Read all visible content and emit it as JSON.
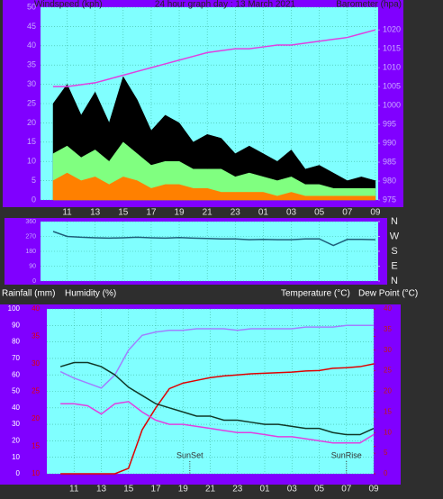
{
  "chart_data": [
    {
      "type": "line",
      "title": "24 hour graph day : 13 March 2021",
      "ylabel": "Windspeed (kph)",
      "y2label": "Barometer (hpa)",
      "x": [
        10,
        11,
        12,
        13,
        14,
        15,
        16,
        17,
        18,
        19,
        20,
        21,
        22,
        23,
        24,
        25,
        26,
        27,
        28,
        29,
        30,
        31,
        32,
        33
      ],
      "xlim": [
        9.1,
        33.2
      ],
      "xticks": [
        11,
        13,
        15,
        17,
        19,
        21,
        23,
        {
          "value": 25,
          "label": "01"
        },
        {
          "value": 27,
          "label": "03"
        },
        {
          "value": 29,
          "label": "05"
        },
        {
          "value": 31,
          "label": "07"
        },
        {
          "value": 33,
          "label": "09"
        }
      ],
      "ylim": [
        0,
        50
      ],
      "yticks": [
        0,
        5,
        10,
        15,
        20,
        25,
        30,
        35,
        40,
        45,
        50
      ],
      "y2lim": [
        975,
        1026
      ],
      "y2ticks": [
        975,
        980,
        985,
        990,
        995,
        1000,
        1005,
        1010,
        1015,
        1020
      ],
      "grid": true,
      "series": [
        {
          "color": "#000000",
          "fill": true,
          "values": [
            25,
            30,
            22,
            28,
            20,
            32,
            26,
            18,
            22,
            20,
            15,
            17,
            16,
            12,
            14,
            12,
            10,
            13,
            8,
            9,
            7,
            5,
            6,
            5
          ]
        },
        {
          "color": "#80ff80",
          "fill": true,
          "values": [
            12,
            14,
            11,
            13,
            10,
            15,
            12,
            9,
            10,
            10,
            8,
            8,
            8,
            6,
            7,
            6,
            5,
            6,
            4,
            4,
            3,
            3,
            3,
            3
          ]
        },
        {
          "color": "#ff8000",
          "fill": true,
          "values": [
            5,
            7,
            5,
            6,
            4,
            6,
            5,
            3,
            4,
            4,
            3,
            3,
            2,
            2,
            2,
            2,
            1,
            2,
            1,
            1,
            1,
            1,
            1,
            1
          ]
        },
        {
          "color": "#e040e0",
          "axis": "y2",
          "values": [
            1005,
            1005,
            1005.5,
            1006,
            1007,
            1008,
            1009,
            1010,
            1011,
            1012,
            1013,
            1014,
            1014.5,
            1015,
            1015,
            1015.5,
            1016,
            1016,
            1016.5,
            1017,
            1017.5,
            1018,
            1019,
            1020
          ]
        }
      ]
    },
    {
      "type": "line",
      "x": [
        10,
        11,
        12,
        13,
        14,
        15,
        16,
        17,
        18,
        19,
        20,
        21,
        22,
        23,
        24,
        25,
        26,
        27,
        28,
        29,
        30,
        31,
        32,
        33
      ],
      "xlim": [
        9.1,
        33.2
      ],
      "xticks": [
        11,
        13,
        15,
        17,
        19,
        21,
        23,
        {
          "value": 25,
          "label": "01"
        },
        {
          "value": 27,
          "label": "03"
        },
        {
          "value": 29,
          "label": "05"
        },
        {
          "value": 31,
          "label": "07"
        },
        {
          "value": 33,
          "label": "09"
        }
      ],
      "ylim": [
        0,
        360
      ],
      "yticks": [
        0,
        90,
        180,
        270,
        360
      ],
      "y2lim": [
        0,
        360
      ],
      "y2ticks": [
        {
          "value": 360,
          "label": "N"
        },
        {
          "value": 270,
          "label": "W"
        },
        {
          "value": 180,
          "label": "S"
        },
        {
          "value": 90,
          "label": "E"
        },
        {
          "value": 0,
          "label": "N"
        }
      ],
      "grid": true,
      "series": [
        {
          "color": "#1f5f7a",
          "values": [
            300,
            270,
            265,
            262,
            260,
            262,
            265,
            262,
            260,
            263,
            260,
            258,
            255,
            255,
            250,
            252,
            250,
            250,
            255,
            255,
            215,
            252,
            252,
            250
          ]
        }
      ]
    },
    {
      "type": "line",
      "x": [
        10,
        11,
        12,
        13,
        14,
        15,
        16,
        17,
        18,
        19,
        20,
        21,
        22,
        23,
        24,
        25,
        26,
        27,
        28,
        29,
        30,
        31,
        32,
        33
      ],
      "xlim": [
        9,
        33
      ],
      "xticks": [
        11,
        13,
        15,
        17,
        19,
        21,
        23,
        {
          "value": 25,
          "label": "01"
        },
        {
          "value": 27,
          "label": "03"
        },
        {
          "value": 29,
          "label": "05"
        },
        {
          "value": 31,
          "label": "07"
        },
        {
          "value": 33,
          "label": "09"
        }
      ],
      "ylim": [
        0,
        100
      ],
      "yticks": [
        0,
        10,
        20,
        30,
        40,
        50,
        60,
        70,
        80,
        90,
        100
      ],
      "y2lim": [
        0,
        40
      ],
      "y2ticks": [
        0,
        5,
        10,
        15,
        20,
        25,
        30,
        35,
        40
      ],
      "y3lim": [
        10,
        40
      ],
      "y3ticks": [
        10,
        15,
        20,
        25,
        30,
        35,
        40
      ],
      "grid": true,
      "series": [
        {
          "name": "Rainfall (mm)",
          "color": "#e00000",
          "axis": "y3",
          "values": [
            10,
            10,
            10,
            10,
            10,
            11,
            18,
            22,
            25.5,
            26.5,
            27,
            27.5,
            27.8,
            28,
            28.2,
            28.3,
            28.4,
            28.5,
            28.7,
            28.8,
            29.2,
            29.3,
            29.5,
            30
          ]
        },
        {
          "name": "Humidity (%)",
          "color": "#a080ff",
          "values": [
            62,
            58,
            55,
            52,
            60,
            75,
            84,
            86,
            87,
            87,
            88,
            88,
            88,
            87,
            88,
            88,
            88,
            88,
            89,
            89,
            89,
            90,
            90,
            90
          ]
        },
        {
          "name": "Temperature (°C)",
          "color": "#103828",
          "axis": "y2",
          "values": [
            26,
            27,
            27,
            26,
            24,
            21,
            19,
            17,
            16,
            15,
            14,
            14,
            13,
            13,
            12.5,
            12,
            12,
            11.5,
            11,
            11,
            10,
            9.5,
            9.5,
            11
          ]
        },
        {
          "name": "Dew Point (°C)",
          "color": "#e040e0",
          "axis": "y2",
          "values": [
            17,
            17,
            16.5,
            14.5,
            17,
            17.5,
            15,
            13,
            12,
            12,
            11.5,
            11,
            10.5,
            10,
            10,
            9.5,
            9,
            9,
            8.5,
            8,
            7.5,
            7.5,
            7.5,
            9.5
          ]
        }
      ],
      "annotations": [
        {
          "x": 19.5,
          "text": "SunSet"
        },
        {
          "x": 31,
          "text": "SunRise"
        }
      ]
    }
  ]
}
